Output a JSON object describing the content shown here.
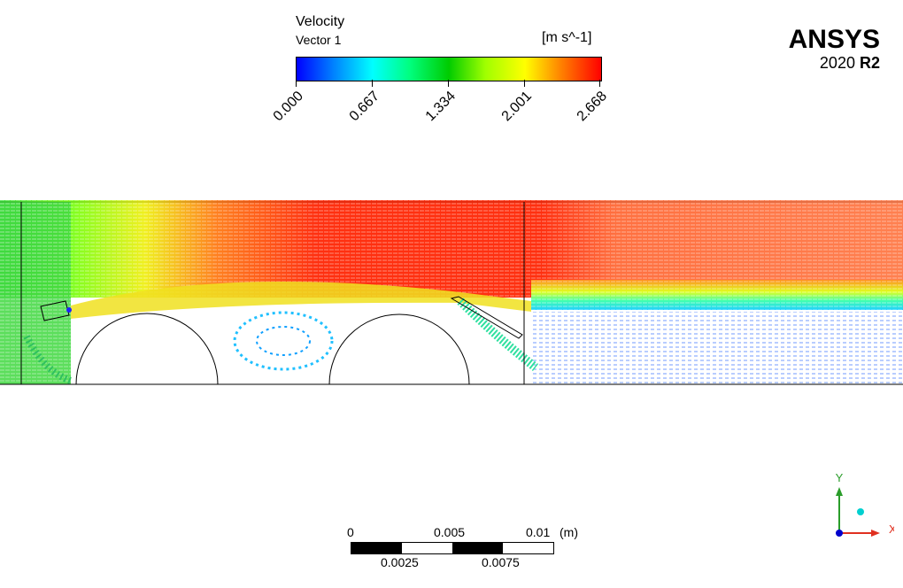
{
  "legend": {
    "title": "Velocity",
    "subtitle": "Vector 1",
    "unit": "[m s^-1]",
    "ticks": [
      "0.000",
      "0.667",
      "1.334",
      "2.001",
      "2.668"
    ],
    "colors": [
      "#0000ff",
      "#00ffff",
      "#00cc00",
      "#ffff00",
      "#ff0000"
    ]
  },
  "logo": {
    "name": "ANSYS",
    "version_year": "2020",
    "version_release": "R2"
  },
  "scale_bar": {
    "top_labels": [
      "0",
      "0.005",
      "0.01"
    ],
    "bottom_labels": [
      "0.0025",
      "0.0075"
    ],
    "unit": "(m)"
  },
  "axes": {
    "y_label": "Y",
    "x_label": "X",
    "y_color": "#2a9d2a",
    "x_color": "#e03020",
    "z_color": "#0000cc"
  }
}
